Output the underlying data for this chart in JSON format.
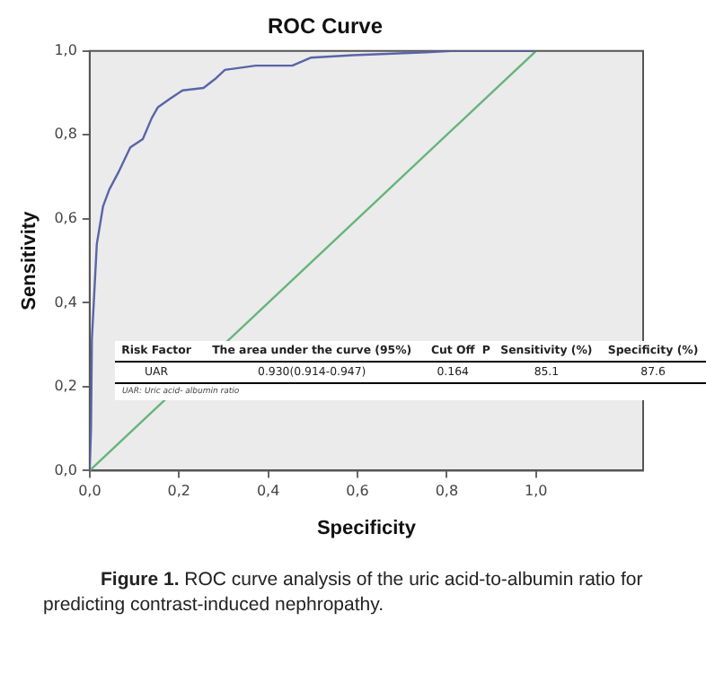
{
  "chart_data": {
    "type": "line",
    "title": "ROC Curve",
    "xlabel": "Specificity",
    "ylabel": "Sensitivity",
    "xlim": [
      0,
      1.24
    ],
    "ylim": [
      0,
      1
    ],
    "xticks": [
      {
        "value": 0,
        "label": "0,0"
      },
      {
        "value": 0.2,
        "label": "0,2"
      },
      {
        "value": 0.4,
        "label": "0,4"
      },
      {
        "value": 0.6,
        "label": "0,6"
      },
      {
        "value": 0.8,
        "label": "0,8"
      },
      {
        "value": 1,
        "label": "1,0"
      }
    ],
    "yticks": [
      {
        "value": 0,
        "label": "0,0"
      },
      {
        "value": 0.2,
        "label": "0,2"
      },
      {
        "value": 0.4,
        "label": "0,4"
      },
      {
        "value": 0.6,
        "label": "0,6"
      },
      {
        "value": 0.8,
        "label": "0,8"
      },
      {
        "value": 1,
        "label": "1,0"
      }
    ],
    "grid": false,
    "legend": false,
    "marker": "none",
    "line_style": "solid",
    "series": [
      {
        "color": "#5a64a8",
        "x": [
          0,
          0.003,
          0.005,
          0.016,
          0.03,
          0.044,
          0.064,
          0.091,
          0.119,
          0.139,
          0.153,
          0.18,
          0.208,
          0.255,
          0.283,
          0.303,
          0.372,
          0.454,
          0.495,
          0.59,
          0.754,
          0.81,
          1.0
        ],
        "values": [
          0,
          0.1,
          0.315,
          0.54,
          0.63,
          0.67,
          0.71,
          0.77,
          0.79,
          0.84,
          0.866,
          0.886,
          0.906,
          0.912,
          0.935,
          0.955,
          0.965,
          0.965,
          0.984,
          0.99,
          0.997,
          1.0,
          1.0
        ]
      },
      {
        "color": "#66b47a",
        "x": [
          0,
          1
        ],
        "values": [
          0,
          1
        ]
      }
    ],
    "annotations": [
      "Risk Factor",
      "The area under the curve (95%)",
      "Cut Off",
      "P",
      "Sensitivity (%)",
      "Specificity (%)",
      "UAR",
      "0.930(0.914-0.947)",
      "0.164",
      "85.1",
      "87.6",
      "UAR: Uric acid- albumin ratio",
      "Figure 1. ROC curve analysis of the uric acid-to-albumin ratio for predicting contrast-induced nephropathy."
    ]
  }
}
